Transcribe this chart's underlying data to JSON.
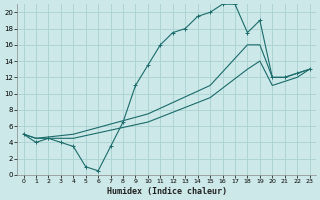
{
  "xlabel": "Humidex (Indice chaleur)",
  "bg_color": "#cde8e8",
  "grid_color": "#aed4d4",
  "line_color": "#1a6b6b",
  "xlim": [
    -0.5,
    23.5
  ],
  "ylim": [
    0,
    21
  ],
  "xticks": [
    0,
    1,
    2,
    3,
    4,
    5,
    6,
    7,
    8,
    9,
    10,
    11,
    12,
    13,
    14,
    15,
    16,
    17,
    18,
    19,
    20,
    21,
    22,
    23
  ],
  "yticks": [
    0,
    2,
    4,
    6,
    8,
    10,
    12,
    14,
    16,
    18,
    20
  ],
  "line1_x": [
    0,
    1,
    2,
    3,
    4,
    5,
    6,
    7,
    8,
    9,
    10,
    11,
    12,
    13,
    14,
    15,
    16,
    17,
    18,
    19,
    20,
    21,
    22,
    23
  ],
  "line1_y": [
    5,
    4,
    4.5,
    4,
    3.5,
    1,
    0.5,
    3.5,
    6.5,
    11,
    13.5,
    16,
    17.5,
    18,
    19.5,
    20,
    21,
    21,
    17.5,
    19,
    12,
    12,
    12.5,
    13
  ],
  "line2_x": [
    0,
    1,
    4,
    10,
    15,
    18,
    19,
    20,
    21,
    22,
    23
  ],
  "line2_y": [
    5,
    4.5,
    5,
    7.5,
    11,
    16,
    16,
    12,
    12,
    12.5,
    13
  ],
  "line3_x": [
    0,
    1,
    4,
    10,
    15,
    18,
    19,
    20,
    21,
    22,
    23
  ],
  "line3_y": [
    5,
    4.5,
    4.5,
    6.5,
    9.5,
    13,
    14,
    11,
    11.5,
    12,
    13
  ]
}
